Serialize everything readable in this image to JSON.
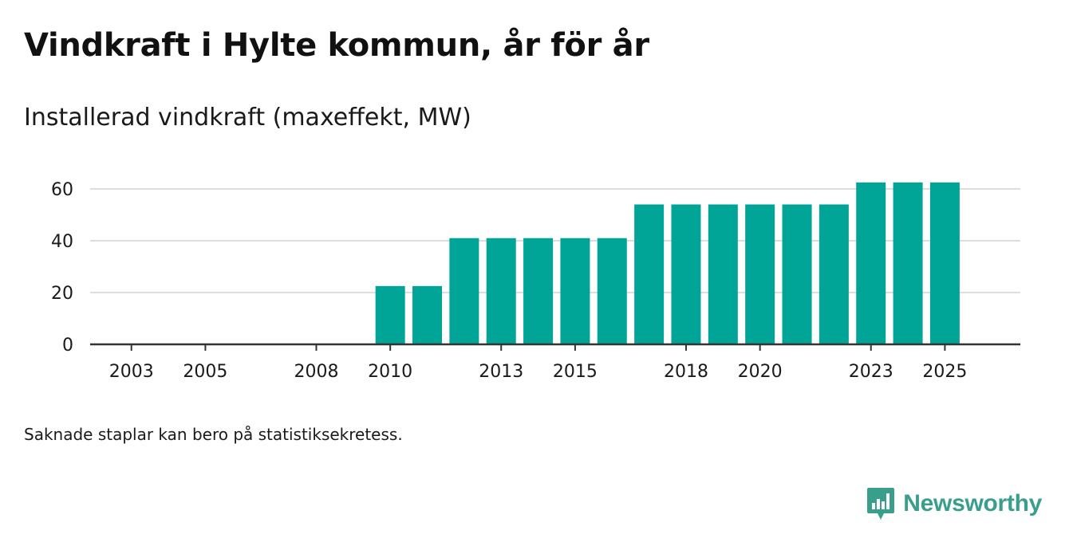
{
  "header": {
    "title": "Vindkraft i Hylte kommun, år för år",
    "subtitle": "Installerad vindkraft (maxeffekt, MW)"
  },
  "footer": {
    "note": "Saknade staplar kan bero på statistiksekretess.",
    "brand": "Newsworthy",
    "logo_icon": "newsworthy-logo-icon"
  },
  "colors": {
    "bar": "#00a598",
    "grid": "#dddddd",
    "axis": "#333333",
    "brand": "#3a9e8c"
  },
  "chart_data": {
    "type": "bar",
    "title": "Vindkraft i Hylte kommun, år för år",
    "subtitle": "Installerad vindkraft (maxeffekt, MW)",
    "xlabel": "",
    "ylabel": "",
    "ylim": [
      0,
      60
    ],
    "yticks": [
      0,
      20,
      40,
      60
    ],
    "grid": true,
    "categories": [
      2002,
      2003,
      2004,
      2005,
      2006,
      2007,
      2008,
      2009,
      2010,
      2011,
      2012,
      2013,
      2014,
      2015,
      2016,
      2017,
      2018,
      2019,
      2020,
      2021,
      2022,
      2023,
      2024,
      2025
    ],
    "xtick_labels": [
      2003,
      2005,
      2008,
      2010,
      2013,
      2015,
      2018,
      2020,
      2023,
      2025
    ],
    "values": [
      0,
      0,
      0,
      0,
      0,
      0,
      0,
      0,
      22.5,
      22.5,
      41,
      41,
      41,
      41,
      41,
      54,
      54,
      54,
      54,
      54,
      54,
      62.5,
      62.5,
      62.5
    ]
  }
}
